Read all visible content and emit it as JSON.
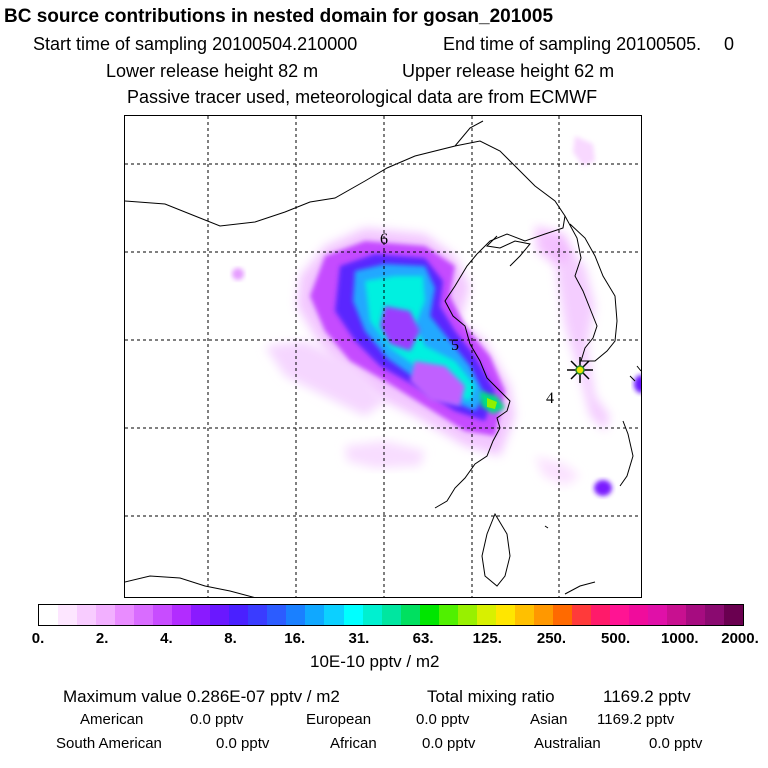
{
  "header": {
    "title": "BC  source contributions in nested domain for gosan_201005",
    "start_label": "Start time of sampling 20100504.210000",
    "end_label": "End time of sampling 20100505.",
    "end_value": "0",
    "lower_release": "Lower release height   82 m",
    "upper_release": "Upper release height   62 m",
    "tracer_note": "Passive tracer used, meteorological data are from ECMWF"
  },
  "map": {
    "contour_labels": [
      "6",
      "5",
      "4"
    ],
    "receptor_marker": "star-asterisk-icon"
  },
  "colorbar": {
    "colors": [
      "#ffffff",
      "#fde6ff",
      "#f8ccff",
      "#f2b0ff",
      "#e98cff",
      "#d96cff",
      "#c84cff",
      "#b22cff",
      "#8a1aff",
      "#6a18ff",
      "#4a20ff",
      "#3a3cff",
      "#2c5cff",
      "#1a80ff",
      "#10a8ff",
      "#0cd0ff",
      "#00ffff",
      "#00f0d0",
      "#00e6a0",
      "#00e060",
      "#00e600",
      "#50f000",
      "#98f000",
      "#d8f000",
      "#ffe600",
      "#ffc000",
      "#ff9800",
      "#ff6a00",
      "#ff3a3a",
      "#ff1a6a",
      "#ff1493",
      "#f00c9c",
      "#e010a8",
      "#c81090",
      "#a60c80",
      "#8a0a70",
      "#6a0050"
    ],
    "tick_labels": [
      "0.",
      "2.",
      "4.",
      "8.",
      "16.",
      "31.",
      "63.",
      "125.",
      "250.",
      "500.",
      "1000.",
      "2000."
    ],
    "units": "10E-10 pptv / m2"
  },
  "summary": {
    "max_label": "Maximum value  0.286E-07 pptv / m2",
    "total_label": "Total mixing ratio",
    "total_value": "1169.2 pptv"
  },
  "regions": [
    {
      "name": "American",
      "value": "0.0 pptv"
    },
    {
      "name": "European",
      "value": "0.0 pptv"
    },
    {
      "name": "Asian",
      "value": "1169.2 pptv"
    },
    {
      "name": "South American",
      "value": "0.0 pptv"
    },
    {
      "name": "African",
      "value": "0.0 pptv"
    },
    {
      "name": "Australian",
      "value": "0.0 pptv"
    }
  ]
}
